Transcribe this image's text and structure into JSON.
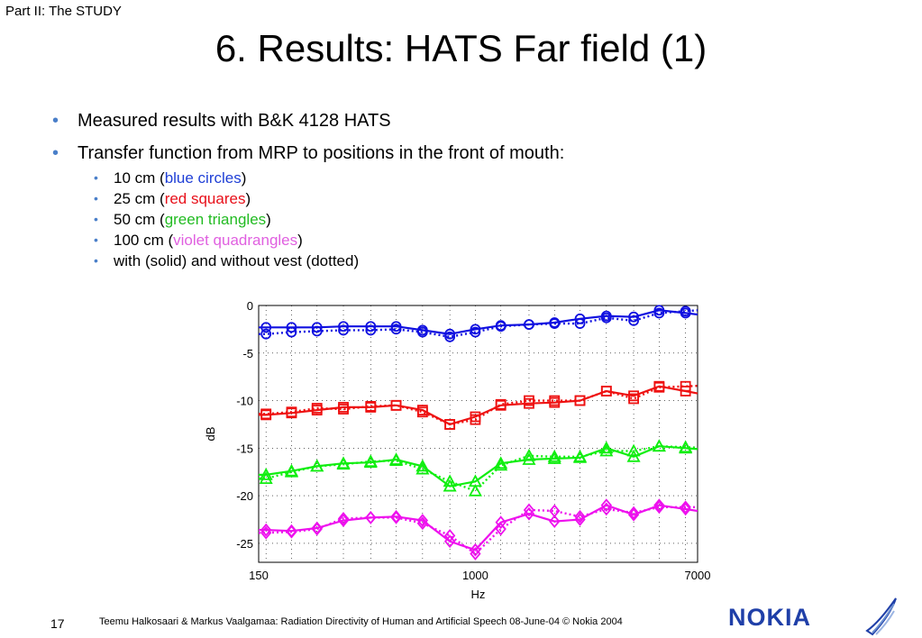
{
  "header": {
    "part": "Part II: The STUDY",
    "title": "6. Results: HATS Far field (1)"
  },
  "bullets": {
    "b1": "Measured results with B&K 4128 HATS",
    "b2": "Transfer function from MRP to positions in the front of mouth:",
    "items": [
      {
        "prefix": "10 cm (",
        "colored": "blue circles",
        "suffix": ")"
      },
      {
        "prefix": "25 cm (",
        "colored": "red squares",
        "suffix": ")"
      },
      {
        "prefix": "50 cm (",
        "colored": "green triangles",
        "suffix": ")"
      },
      {
        "prefix": "100 cm (",
        "colored": "violet quadrangles",
        "suffix": ")"
      },
      {
        "text": "with (solid) and without vest (dotted)"
      }
    ]
  },
  "colors": {
    "blue": "#1010e0",
    "red": "#ee1111",
    "green": "#11ee11",
    "violet": "#ee11ee",
    "bullet": "#4a7fc9",
    "nokia": "#1f3fa8"
  },
  "chart_data": {
    "type": "line",
    "xscale": "log",
    "xlabel": "Hz",
    "ylabel": "dB",
    "xlim": [
      150,
      7000
    ],
    "ylim": [
      -27,
      0
    ],
    "xtick_labels": [
      "150",
      "1000",
      "7000"
    ],
    "ytick_labels": [
      "0",
      "-5",
      "-10",
      "-15",
      "-20",
      "-25"
    ],
    "grid": true,
    "x": [
      160,
      200,
      250,
      315,
      400,
      500,
      630,
      800,
      1000,
      1250,
      1600,
      2000,
      2500,
      3150,
      4000,
      5000,
      6300
    ],
    "series": [
      {
        "color": "#1010e0",
        "marker": "circle",
        "style": "solid",
        "values": [
          -2.3,
          -2.3,
          -2.3,
          -2.2,
          -2.2,
          -2.2,
          -2.6,
          -3.0,
          -2.5,
          -2.1,
          -2.0,
          -1.8,
          -1.4,
          -1.1,
          -1.2,
          -0.5,
          -0.8
        ]
      },
      {
        "color": "#1010e0",
        "marker": "circle",
        "style": "dotted",
        "values": [
          -3.0,
          -2.8,
          -2.7,
          -2.6,
          -2.6,
          -2.5,
          -2.8,
          -3.3,
          -2.8,
          -2.2,
          -2.0,
          -1.9,
          -1.9,
          -1.3,
          -1.6,
          -0.8,
          -0.6
        ]
      },
      {
        "color": "#ee1111",
        "marker": "square",
        "style": "solid",
        "values": [
          -11.5,
          -11.3,
          -11.0,
          -10.7,
          -10.7,
          -10.5,
          -11.0,
          -12.5,
          -11.7,
          -10.5,
          -10.3,
          -10.2,
          -10.0,
          -9.0,
          -9.5,
          -8.5,
          -9.0
        ]
      },
      {
        "color": "#ee1111",
        "marker": "square",
        "style": "dotted",
        "values": [
          -11.4,
          -11.2,
          -10.8,
          -10.9,
          -10.6,
          -10.5,
          -11.2,
          -12.5,
          -12.0,
          -10.4,
          -10.0,
          -10.0,
          -10.0,
          -9.0,
          -9.8,
          -8.6,
          -8.5
        ]
      },
      {
        "color": "#11ee11",
        "marker": "triangle",
        "style": "solid",
        "values": [
          -17.8,
          -17.4,
          -16.9,
          -16.6,
          -16.5,
          -16.2,
          -16.9,
          -19.0,
          -18.5,
          -16.6,
          -16.2,
          -16.1,
          -16.0,
          -15.0,
          -15.9,
          -14.8,
          -15.0
        ]
      },
      {
        "color": "#11ee11",
        "marker": "triangle",
        "style": "dotted",
        "values": [
          -18.2,
          -17.5,
          -16.9,
          -16.7,
          -16.4,
          -16.3,
          -17.2,
          -18.5,
          -19.5,
          -16.8,
          -15.8,
          -15.9,
          -15.9,
          -15.3,
          -15.3,
          -14.8,
          -14.9
        ]
      },
      {
        "color": "#ee11ee",
        "marker": "diamond",
        "style": "solid",
        "values": [
          -23.6,
          -23.7,
          -23.4,
          -22.6,
          -22.3,
          -22.2,
          -22.6,
          -24.8,
          -25.7,
          -22.8,
          -21.9,
          -22.7,
          -22.5,
          -21.0,
          -22.0,
          -21.0,
          -21.4
        ]
      },
      {
        "color": "#ee11ee",
        "marker": "diamond",
        "style": "dotted",
        "values": [
          -23.9,
          -23.8,
          -23.5,
          -22.4,
          -22.3,
          -22.3,
          -22.9,
          -24.2,
          -26.1,
          -23.5,
          -21.5,
          -21.6,
          -22.2,
          -21.4,
          -21.8,
          -21.2,
          -21.2
        ]
      }
    ]
  },
  "footer": {
    "page_num": "17",
    "text": "Teemu Halkosaari & Markus Vaalgamaa: Radiation Directivity of Human and Artificial Speech  08-June-04        © Nokia 2004",
    "logo": "NOKIA"
  }
}
